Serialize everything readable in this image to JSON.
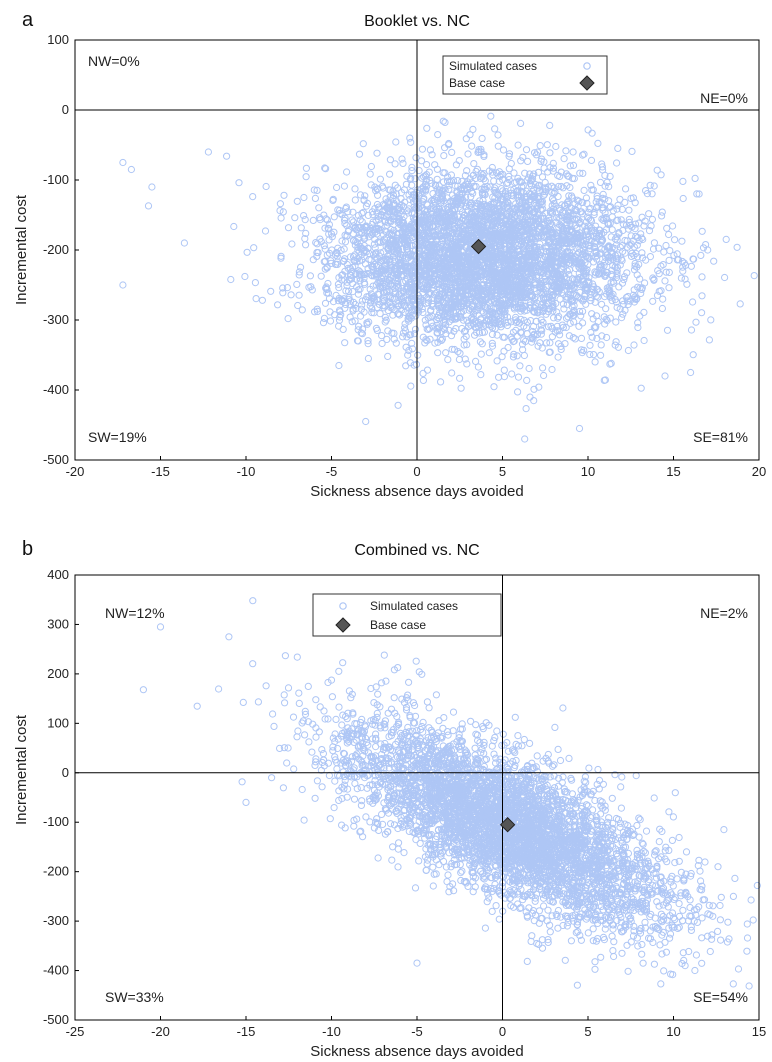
{
  "chart_data": [
    {
      "panel_label": "a",
      "type": "scatter",
      "title": "Booklet vs. NC",
      "xlabel": "Sickness absence days avoided",
      "ylabel": "Incremental cost",
      "xlim": [
        -20,
        20
      ],
      "ylim": [
        -500,
        100
      ],
      "xticks": [
        -20,
        -15,
        -10,
        -5,
        0,
        5,
        10,
        15,
        20
      ],
      "yticks": [
        -500,
        -400,
        -300,
        -200,
        -100,
        0,
        100
      ],
      "grid": false,
      "legend_position": "top-center",
      "legend": [
        "Simulated cases",
        "Base case"
      ],
      "quadrants": {
        "NW": "NW=0%",
        "NE": "NE=0%",
        "SW": "SW=19%",
        "SE": "SE=81%"
      },
      "base_case": {
        "x": 3.6,
        "y": -195
      },
      "cloud": {
        "x_mean": 3.8,
        "y_mean": -210,
        "x_sd": 4.6,
        "y_sd": 62,
        "correlation": 0.0,
        "n": 4500
      },
      "outliers": [
        [
          -17.2,
          -75
        ],
        [
          -16.7,
          -85
        ],
        [
          -15.5,
          -110
        ],
        [
          -15.7,
          -137
        ],
        [
          -17.2,
          -250
        ],
        [
          -13.6,
          -190
        ],
        [
          -12.2,
          -60
        ],
        [
          18.9,
          -277
        ],
        [
          16.0,
          -375
        ],
        [
          14.5,
          -380
        ],
        [
          17.0,
          -200
        ],
        [
          16.5,
          -120
        ],
        [
          -3.0,
          -445
        ],
        [
          6.3,
          -470
        ],
        [
          9.5,
          -455
        ]
      ],
      "series_colors": {
        "simulated": "#aec6f5",
        "base": "#555555"
      }
    },
    {
      "panel_label": "b",
      "type": "scatter",
      "title": "Combined vs. NC",
      "xlabel": "Sickness absence days avoided",
      "ylabel": "Incremental cost",
      "xlim": [
        -25,
        15
      ],
      "ylim": [
        -500,
        400
      ],
      "xticks": [
        -25,
        -20,
        -15,
        -10,
        -5,
        0,
        5,
        10,
        15
      ],
      "yticks": [
        -500,
        -400,
        -300,
        -200,
        -100,
        0,
        100,
        200,
        300,
        400
      ],
      "grid": false,
      "legend_position": "top-center",
      "legend": [
        "Simulated cases",
        "Base case"
      ],
      "quadrants": {
        "NW": "NW=12%",
        "NE": "NE=2%",
        "SW": "SW=33%",
        "SE": "SE=54%"
      },
      "base_case": {
        "x": 0.3,
        "y": -105
      },
      "cloud": {
        "x_mean": 0.2,
        "y_mean": -105,
        "x_sd": 4.8,
        "y_sd": 105,
        "correlation": -0.72,
        "n": 4500
      },
      "outliers": [
        [
          -20.0,
          295
        ],
        [
          -21.0,
          168
        ],
        [
          -14.6,
          348
        ],
        [
          -16.0,
          275
        ],
        [
          14.9,
          -228
        ],
        [
          13.5,
          -250
        ],
        [
          12.6,
          -190
        ],
        [
          -5.0,
          -385
        ],
        [
          -15.0,
          -60
        ],
        [
          -13.5,
          -10
        ]
      ],
      "series_colors": {
        "simulated": "#aec6f5",
        "base": "#555555"
      }
    }
  ]
}
